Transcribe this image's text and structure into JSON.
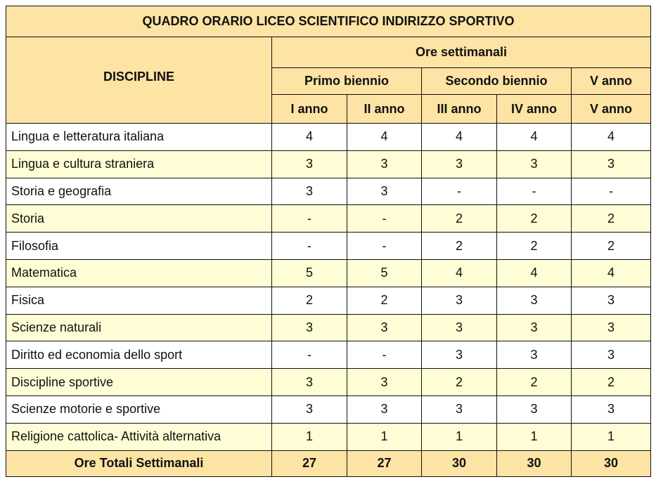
{
  "title": "QUADRO ORARIO LICEO SCIENTIFICO INDIRIZZO SPORTIVO",
  "header": {
    "discipline": "DISCIPLINE",
    "ore": "Ore settimanali",
    "groups": [
      "Primo biennio",
      "Secondo biennio",
      "V anno"
    ],
    "years": [
      "I anno",
      "II anno",
      "III anno",
      "IV anno",
      "V anno"
    ]
  },
  "colors": {
    "header_bg": "#fde3a4",
    "alt_row_bg": "#fffdd5"
  },
  "rows": [
    {
      "name": "Lingua e letteratura italiana",
      "values": [
        "4",
        "4",
        "4",
        "4",
        "4"
      ]
    },
    {
      "name": "Lingua e cultura straniera",
      "values": [
        "3",
        "3",
        "3",
        "3",
        "3"
      ]
    },
    {
      "name": "Storia e geografia",
      "values": [
        "3",
        "3",
        "-",
        "-",
        "-"
      ]
    },
    {
      "name": "Storia",
      "values": [
        "-",
        "-",
        "2",
        "2",
        "2"
      ]
    },
    {
      "name": "Filosofia",
      "values": [
        "-",
        "-",
        "2",
        "2",
        "2"
      ]
    },
    {
      "name": "Matematica",
      "values": [
        "5",
        "5",
        "4",
        "4",
        "4"
      ]
    },
    {
      "name": "Fisica",
      "values": [
        "2",
        "2",
        "3",
        "3",
        "3"
      ]
    },
    {
      "name": "Scienze naturali",
      "values": [
        "3",
        "3",
        "3",
        "3",
        "3"
      ]
    },
    {
      "name": "Diritto ed economia dello sport",
      "values": [
        "-",
        "-",
        "3",
        "3",
        "3"
      ]
    },
    {
      "name": "Discipline sportive",
      "values": [
        "3",
        "3",
        "2",
        "2",
        "2"
      ]
    },
    {
      "name": "Scienze motorie e sportive",
      "values": [
        "3",
        "3",
        "3",
        "3",
        "3"
      ]
    },
    {
      "name": "Religione cattolica- Attività alternativa",
      "values": [
        "1",
        "1",
        "1",
        "1",
        "1"
      ]
    }
  ],
  "totals": {
    "label": "Ore Totali Settimanali",
    "values": [
      "27",
      "27",
      "30",
      "30",
      "30"
    ]
  }
}
